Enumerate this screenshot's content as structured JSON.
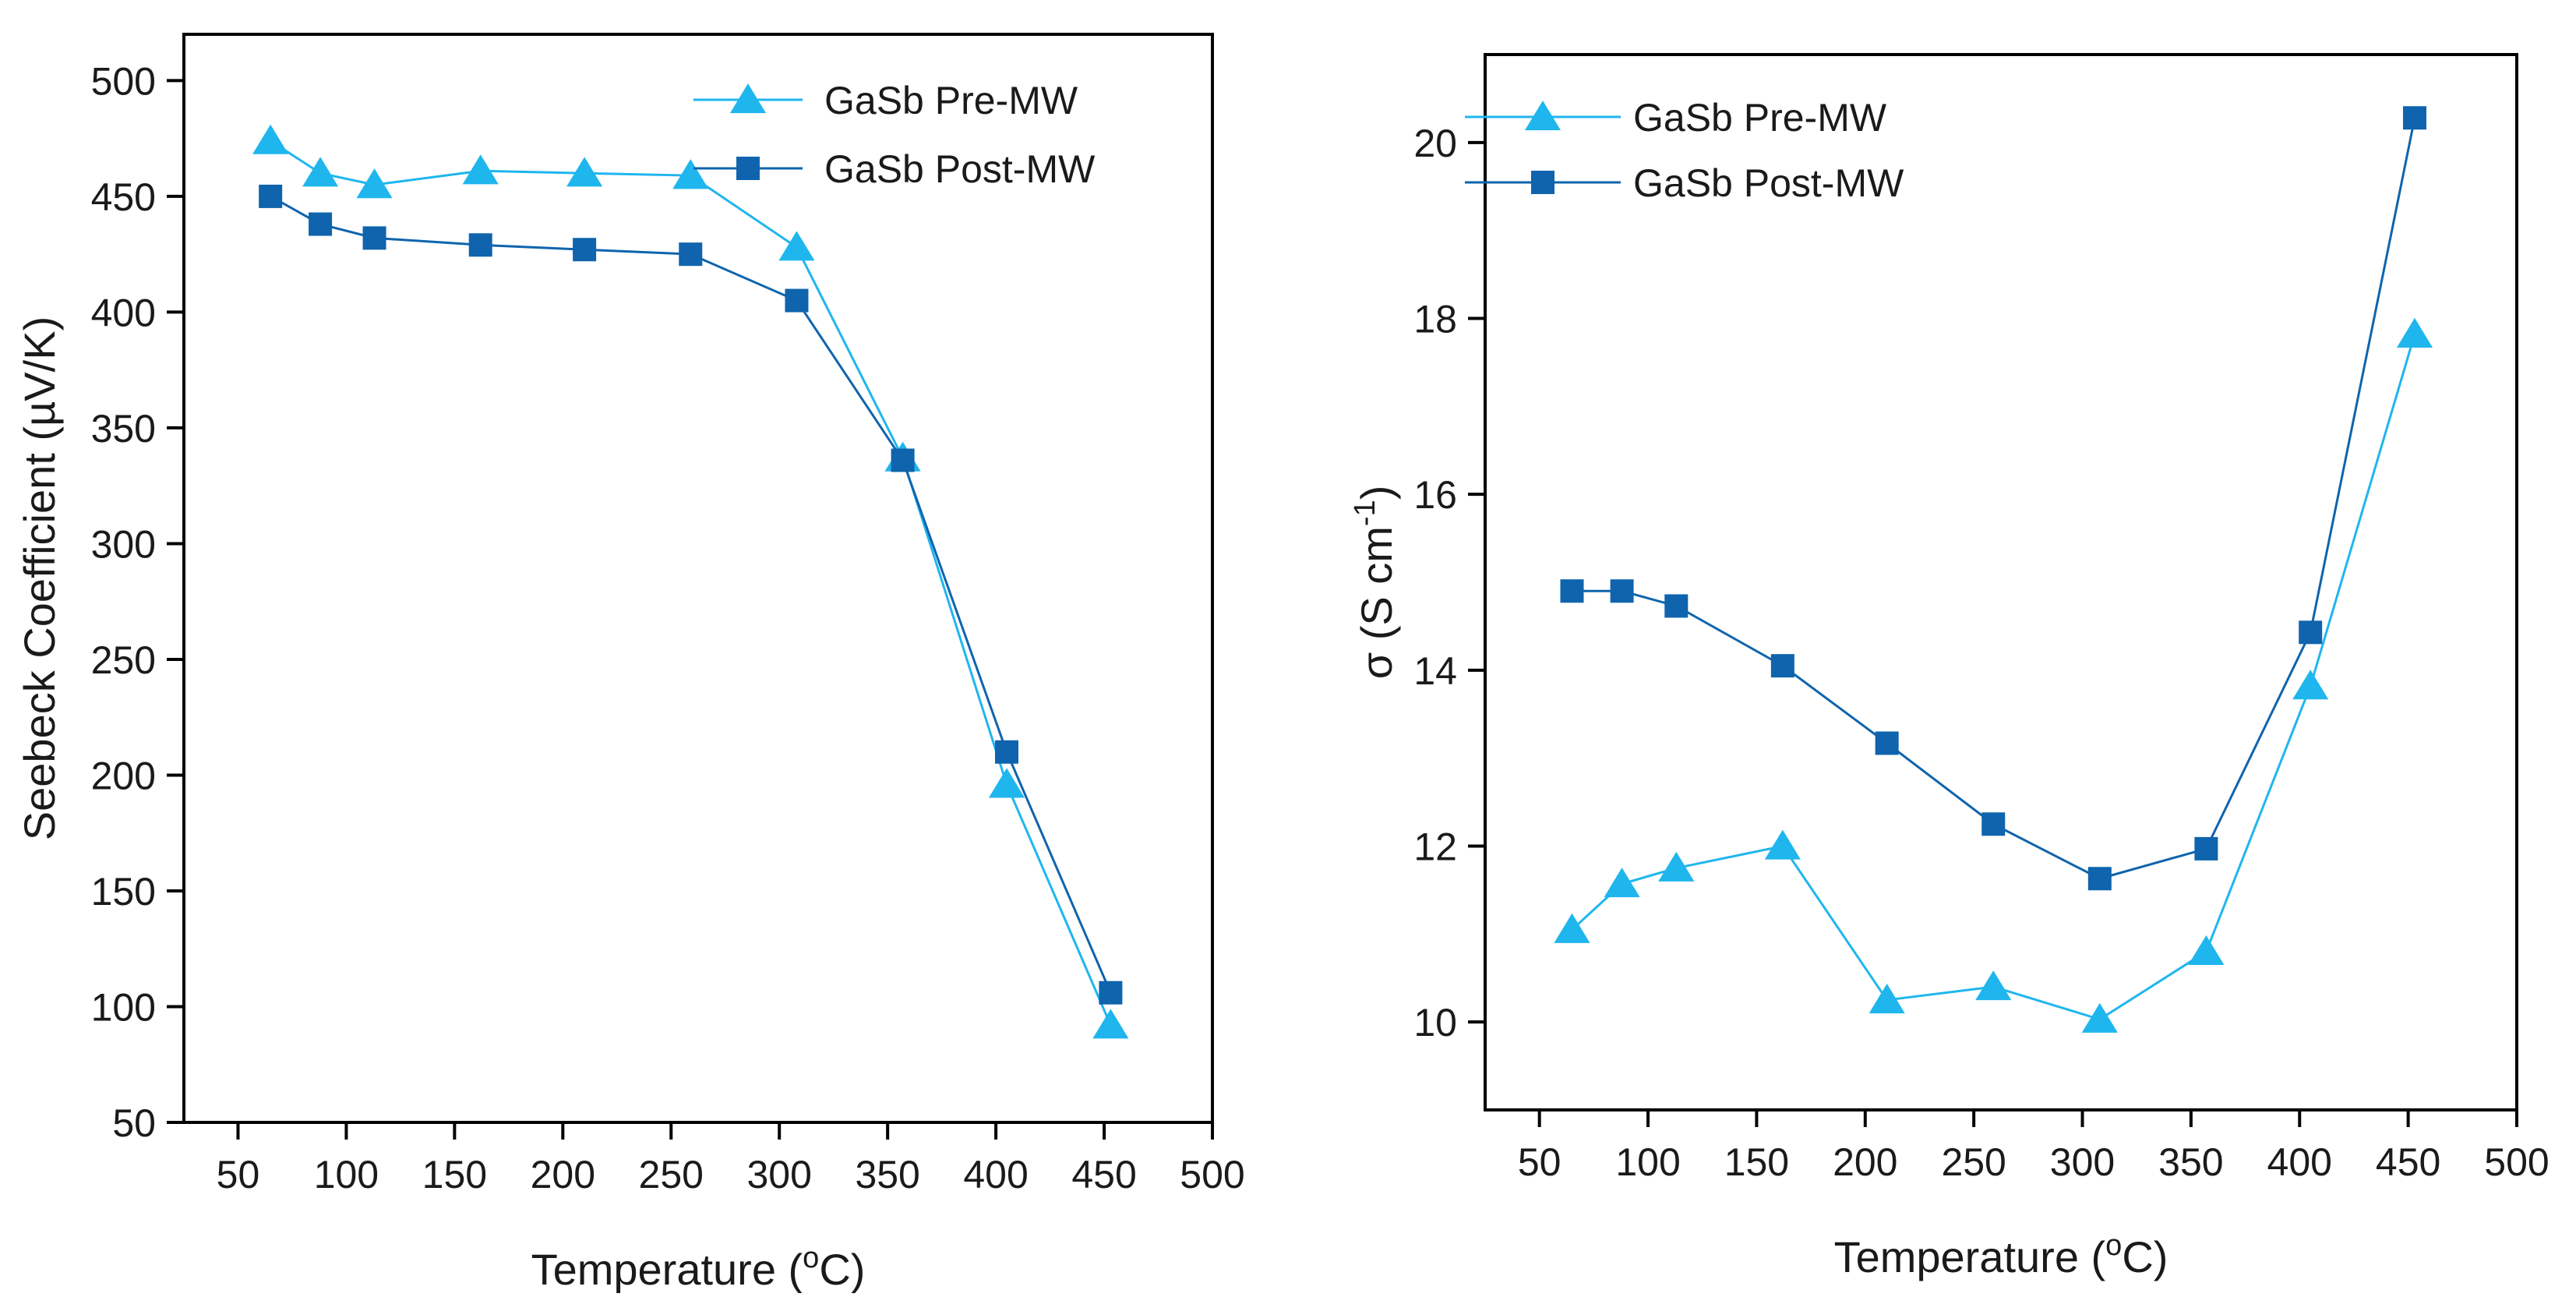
{
  "colors": {
    "pre_mw": "#1fb6ee",
    "post_mw": "#0f64ad",
    "axis": "#000000"
  },
  "chart_data": [
    {
      "type": "line",
      "xlabel": "Temperature (",
      "xlabel_sup": "o",
      "xlabel_end": "C)",
      "ylabel": "Seebeck Coefficient (µV/K)",
      "xlim": [
        25,
        500
      ],
      "ylim": [
        50,
        520
      ],
      "xticks": [
        50,
        100,
        150,
        200,
        250,
        300,
        350,
        400,
        450,
        500
      ],
      "yticks": [
        50,
        100,
        150,
        200,
        250,
        300,
        350,
        400,
        450,
        500
      ],
      "grid": false,
      "legend_position": "top-right",
      "series": [
        {
          "name": "GaSb Pre-MW",
          "marker": "triangle",
          "color": "#1fb6ee",
          "x": [
            65,
            88,
            113,
            162,
            210,
            259,
            308,
            357,
            405,
            453
          ],
          "y": [
            474,
            460,
            455,
            461,
            460,
            459,
            428,
            337,
            196,
            92
          ]
        },
        {
          "name": "GaSb Post-MW",
          "marker": "square",
          "color": "#0f64ad",
          "x": [
            65,
            88,
            113,
            162,
            210,
            259,
            308,
            357,
            405,
            453
          ],
          "y": [
            450,
            438,
            432,
            429,
            427,
            425,
            405,
            336,
            210,
            106
          ]
        }
      ]
    },
    {
      "type": "line",
      "xlabel": "Temperature (",
      "xlabel_sup": "o",
      "xlabel_end": "C)",
      "ylabel": "σ (S cm",
      "ylabel_sup": "-1",
      "ylabel_end": ")",
      "xlim": [
        25,
        500
      ],
      "ylim": [
        9,
        21
      ],
      "xticks": [
        50,
        100,
        150,
        200,
        250,
        300,
        350,
        400,
        450,
        500
      ],
      "yticks": [
        10,
        12,
        14,
        16,
        18,
        20
      ],
      "grid": false,
      "legend_position": "top-left",
      "series": [
        {
          "name": "GaSb Pre-MW",
          "marker": "triangle",
          "color": "#1fb6ee",
          "x": [
            65,
            88,
            113,
            162,
            210,
            259,
            308,
            357,
            405,
            453
          ],
          "y": [
            11.05,
            11.57,
            11.75,
            12.0,
            10.25,
            10.4,
            10.03,
            10.8,
            13.82,
            17.82
          ]
        },
        {
          "name": "GaSb Post-MW",
          "marker": "square",
          "color": "#0f64ad",
          "x": [
            65,
            88,
            113,
            162,
            210,
            259,
            308,
            357,
            405,
            453
          ],
          "y": [
            14.9,
            14.9,
            14.73,
            14.05,
            13.17,
            12.25,
            11.63,
            11.97,
            14.43,
            20.28
          ]
        }
      ]
    }
  ]
}
